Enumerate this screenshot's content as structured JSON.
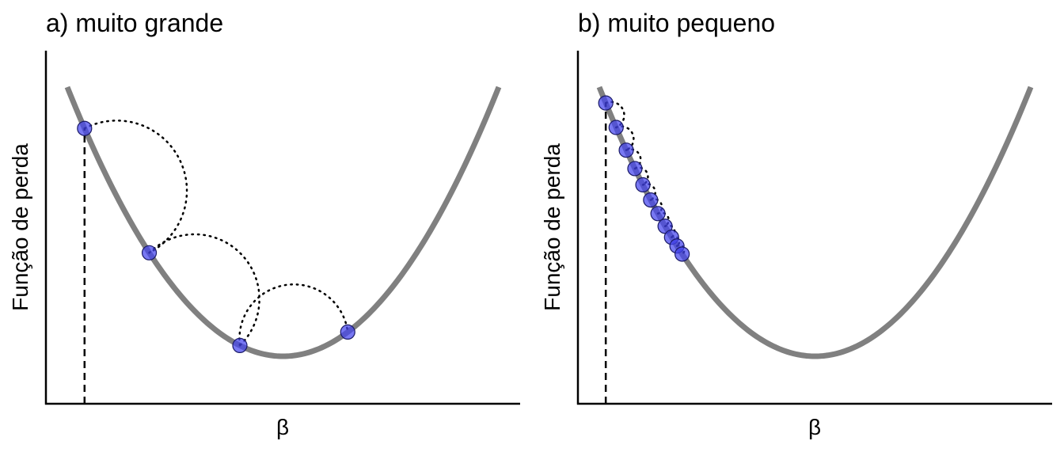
{
  "chart_data": [
    {
      "type": "line",
      "title": "a) muito grande",
      "xlabel": "β",
      "ylabel": "Função de perda",
      "xlim": [
        -1,
        1
      ],
      "ylim": [
        0,
        1.2
      ],
      "grid": false,
      "curve": {
        "equation": "y = x^2",
        "color": "#808080"
      },
      "start_x": -0.92,
      "steps": [
        {
          "x": -0.92,
          "y": 0.8464
        },
        {
          "x": -0.62,
          "y": 0.3844
        },
        {
          "x": -0.2,
          "y": 0.04
        },
        {
          "x": 0.3,
          "y": 0.09
        }
      ],
      "point_color": "#4444ee"
    },
    {
      "type": "line",
      "title": "b) muito pequeno",
      "xlabel": "β",
      "ylabel": "Função de perda",
      "xlim": [
        -1,
        1
      ],
      "ylim": [
        0,
        1.2
      ],
      "grid": false,
      "curve": {
        "equation": "y = x^2",
        "color": "#808080"
      },
      "start_x": -0.97,
      "steps": [
        {
          "x": -0.97,
          "y": 0.9409
        },
        {
          "x": -0.922,
          "y": 0.85
        },
        {
          "x": -0.875,
          "y": 0.7656
        },
        {
          "x": -0.835,
          "y": 0.6972
        },
        {
          "x": -0.798,
          "y": 0.6368
        },
        {
          "x": -0.762,
          "y": 0.5806
        },
        {
          "x": -0.728,
          "y": 0.53
        },
        {
          "x": -0.695,
          "y": 0.483
        },
        {
          "x": -0.665,
          "y": 0.4422
        },
        {
          "x": -0.64,
          "y": 0.4096
        },
        {
          "x": -0.616,
          "y": 0.3795
        }
      ],
      "point_color": "#4444ee"
    }
  ]
}
